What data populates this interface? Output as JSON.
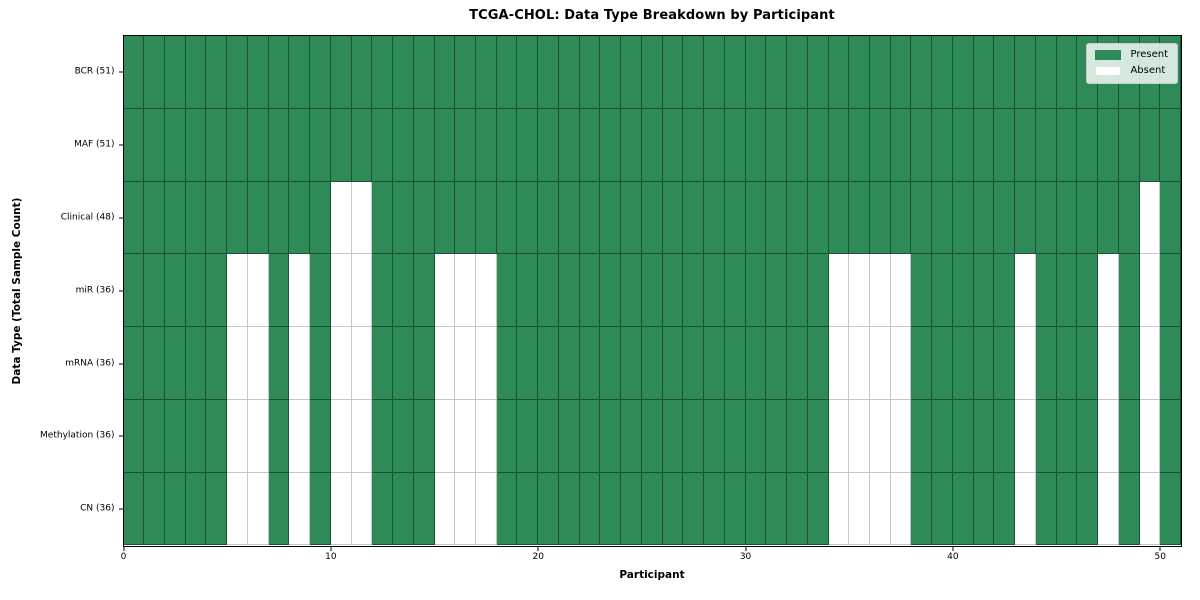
{
  "title": "TCGA-CHOL: Data Type Breakdown by Participant",
  "legend": {
    "entries": [
      {
        "label": "Present",
        "type": "present"
      },
      {
        "label": "Absent",
        "type": "absent"
      }
    ]
  },
  "colors": {
    "present": "#2e8b57",
    "absent": "#ffffff"
  },
  "chart_data": {
    "type": "heatmap",
    "title": "TCGA-CHOL: Data Type Breakdown by Participant",
    "xlabel": "Participant",
    "ylabel": "Data Type (Total Sample Count)",
    "legend": [
      "Present",
      "Absent"
    ],
    "legend_position": "upper right",
    "n_participants": 51,
    "x_max": 51,
    "x_ticks": [
      0,
      10,
      20,
      30,
      40,
      50
    ],
    "grid": true,
    "rows": [
      {
        "label": "BCR (51)",
        "data_type": "BCR",
        "present_count": 51,
        "absent_participants": []
      },
      {
        "label": "MAF (51)",
        "data_type": "MAF",
        "present_count": 51,
        "absent_participants": []
      },
      {
        "label": "Clinical (48)",
        "data_type": "Clinical",
        "present_count": 48,
        "absent_participants": [
          10,
          11,
          49
        ]
      },
      {
        "label": "miR (36)",
        "data_type": "miR",
        "present_count": 36,
        "absent_participants": [
          5,
          6,
          8,
          10,
          11,
          15,
          16,
          17,
          34,
          35,
          36,
          37,
          43,
          47,
          49
        ]
      },
      {
        "label": "mRNA (36)",
        "data_type": "mRNA",
        "present_count": 36,
        "absent_participants": [
          5,
          6,
          8,
          10,
          11,
          15,
          16,
          17,
          34,
          35,
          36,
          37,
          43,
          47,
          49
        ]
      },
      {
        "label": "Methylation (36)",
        "data_type": "Methylation",
        "present_count": 36,
        "absent_participants": [
          5,
          6,
          8,
          10,
          11,
          15,
          16,
          17,
          34,
          35,
          36,
          37,
          43,
          47,
          49
        ]
      },
      {
        "label": "CN (36)",
        "data_type": "CN",
        "present_count": 36,
        "absent_participants": [
          5,
          6,
          8,
          10,
          11,
          15,
          16,
          17,
          34,
          35,
          36,
          37,
          43,
          47,
          49
        ]
      }
    ]
  }
}
